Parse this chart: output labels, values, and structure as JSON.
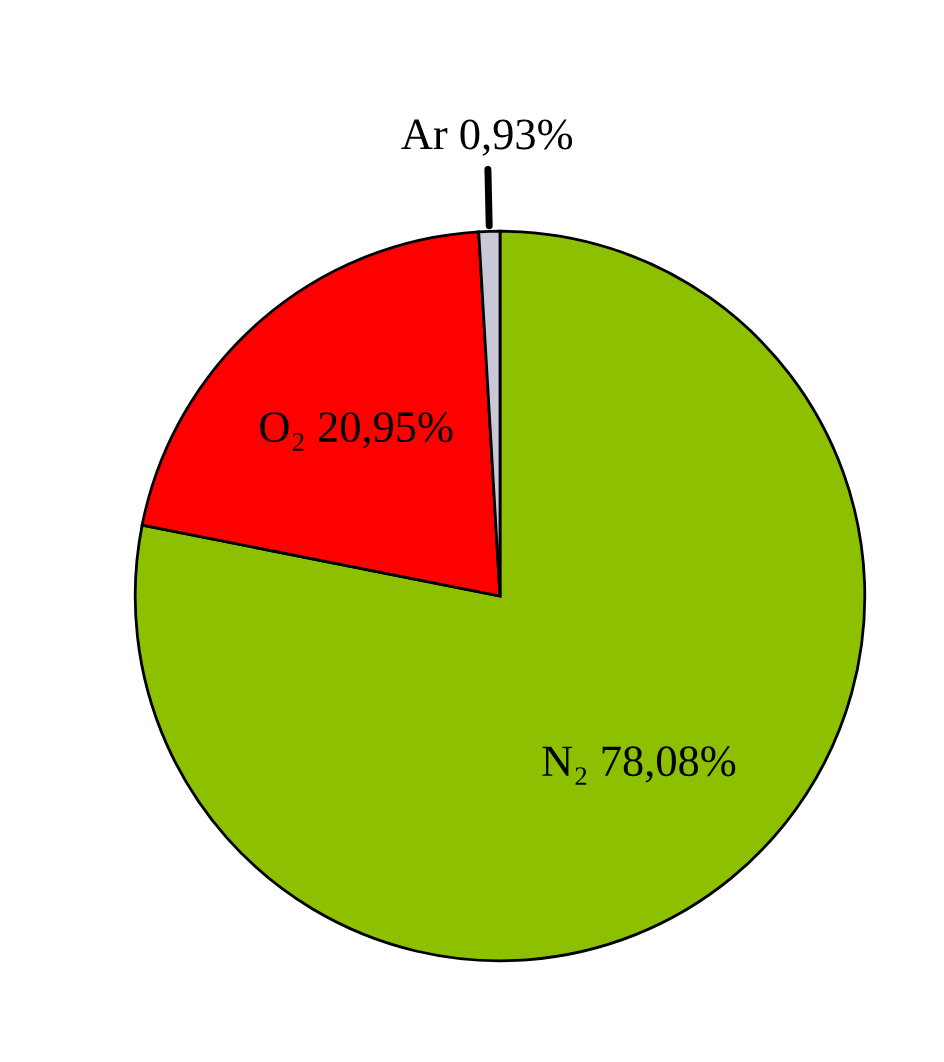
{
  "chart_data": {
    "type": "pie",
    "categories": [
      "N₂",
      "O₂",
      "Ar"
    ],
    "values": [
      78.08,
      20.95,
      0.93
    ],
    "value_labels": [
      "78,08%",
      "20,95%",
      "0,93%"
    ],
    "colors": [
      "#8cc000",
      "#ff0000",
      "#c8c8d8"
    ],
    "legend": false
  }
}
